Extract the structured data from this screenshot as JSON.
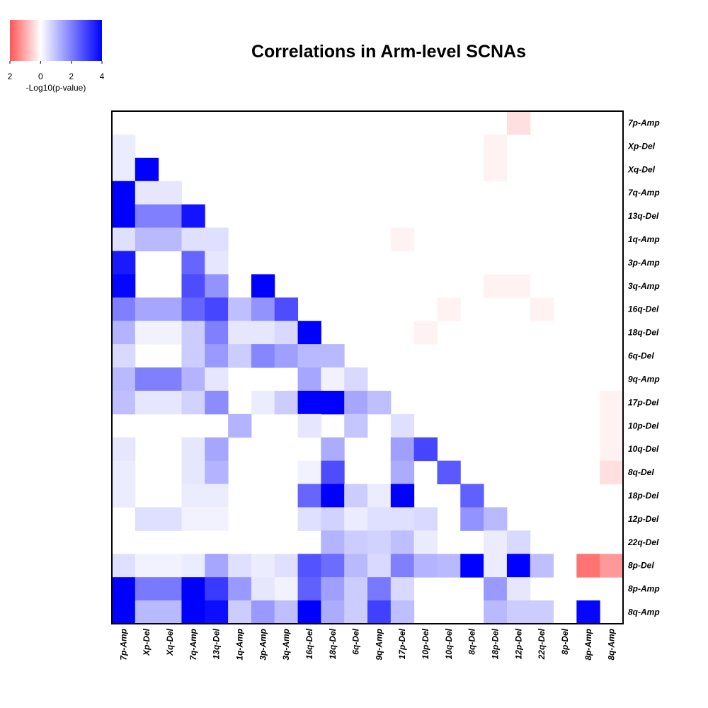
{
  "chart_data": {
    "type": "heatmap",
    "title": "Correlations in Arm-level SCNAs",
    "legend": {
      "label": "-Log10(p-value)",
      "ticks": [
        "2",
        "0",
        "2",
        "4"
      ],
      "range": [
        -2,
        4
      ],
      "negative_color": "#ff0000",
      "neutral_color": "#ffffff",
      "positive_color": "#0000ff",
      "placement": "top-left"
    },
    "rows": [
      "7p-Amp",
      "Xp-Del",
      "Xq-Del",
      "7q-Amp",
      "13q-Del",
      "1q-Amp",
      "3p-Amp",
      "3q-Amp",
      "16q-Del",
      "18q-Del",
      "6q-Del",
      "9q-Amp",
      "17p-Del",
      "10p-Del",
      "10q-Del",
      "8q-Del",
      "18p-Del",
      "12p-Del",
      "22q-Del",
      "8p-Del",
      "8p-Amp",
      "8q-Amp"
    ],
    "columns": [
      "7p-Amp",
      "Xp-Del",
      "Xq-Del",
      "7q-Amp",
      "13q-Del",
      "1q-Amp",
      "3p-Amp",
      "3q-Amp",
      "16q-Del",
      "18q-Del",
      "6q-Del",
      "9q-Amp",
      "17p-Del",
      "10p-Del",
      "10q-Del",
      "8q-Del",
      "18p-Del",
      "12p-Del",
      "22q-Del",
      "8p-Del",
      "8p-Amp",
      "8q-Amp"
    ],
    "values": [
      [
        0,
        0,
        0,
        0,
        0,
        0,
        0,
        0,
        0,
        0,
        0,
        0,
        0,
        0,
        0,
        0,
        0,
        -0.25,
        0,
        0,
        0,
        0
      ],
      [
        0.3,
        0,
        0,
        0,
        0,
        0,
        0,
        0,
        0,
        0,
        0,
        0,
        0,
        0,
        0,
        0,
        -0.1,
        0,
        0,
        0,
        0,
        0
      ],
      [
        0.3,
        4,
        0,
        0,
        0,
        0,
        0,
        0,
        0,
        0,
        0,
        0,
        0,
        0,
        0,
        0,
        -0.1,
        0,
        0,
        0,
        0,
        0
      ],
      [
        4,
        0.4,
        0.4,
        0,
        0,
        0,
        0,
        0,
        0,
        0,
        0,
        0,
        0,
        0,
        0,
        0,
        0,
        0,
        0,
        0,
        0,
        0
      ],
      [
        4,
        2,
        2,
        3.7,
        0,
        0,
        0,
        0,
        0,
        0,
        0,
        0,
        0,
        0,
        0,
        0,
        0,
        0,
        0,
        0,
        0,
        0
      ],
      [
        0.5,
        1.1,
        1.1,
        0.5,
        0.5,
        0,
        0,
        0,
        0,
        0,
        0,
        0,
        -0.1,
        0,
        0,
        0,
        0,
        0,
        0,
        0,
        0,
        0
      ],
      [
        3.6,
        0,
        0,
        2.4,
        0.4,
        0,
        0,
        0,
        0,
        0,
        0,
        0,
        0,
        0,
        0,
        0,
        0,
        0,
        0,
        0,
        0,
        0
      ],
      [
        3.9,
        0,
        0,
        2.8,
        1.7,
        0,
        4,
        0,
        0,
        0,
        0,
        0,
        0,
        0,
        0,
        0,
        -0.1,
        -0.1,
        0,
        0,
        0,
        0
      ],
      [
        2,
        1.4,
        1.4,
        2.4,
        2.9,
        1,
        1.7,
        2.8,
        0,
        0,
        0,
        0,
        0,
        0,
        -0.1,
        0,
        0,
        0,
        -0.1,
        0,
        0,
        0
      ],
      [
        1.2,
        0.2,
        0.2,
        0.8,
        2,
        0.4,
        0.4,
        0.6,
        4,
        0,
        0,
        0,
        0,
        -0.1,
        0,
        0,
        0,
        0,
        0,
        0,
        0,
        0
      ],
      [
        0.6,
        0,
        0,
        0.8,
        1.6,
        0.8,
        1.9,
        1.5,
        1.1,
        1.1,
        0,
        0,
        0,
        0,
        0,
        0,
        0,
        0,
        0,
        0,
        0,
        0
      ],
      [
        1.1,
        2,
        2,
        1.2,
        0.4,
        0,
        0,
        0,
        1.4,
        0.2,
        0.6,
        0,
        0,
        0,
        0,
        0,
        0,
        0,
        0,
        0,
        0,
        0
      ],
      [
        1,
        0.4,
        0.4,
        0.7,
        1.8,
        0,
        0.3,
        0.8,
        4,
        4,
        1.4,
        1,
        0,
        0,
        0,
        0,
        0,
        0,
        0,
        0,
        0,
        -0.1
      ],
      [
        0,
        0,
        0,
        0,
        0,
        1.2,
        0,
        0,
        0.4,
        0,
        0.9,
        0,
        0.5,
        0,
        0,
        0,
        0,
        0,
        0,
        0,
        0,
        -0.1
      ],
      [
        0.4,
        0,
        0,
        0.4,
        1.4,
        0,
        0,
        0,
        0,
        1.3,
        0,
        0,
        1.5,
        2.9,
        0,
        0,
        0,
        0,
        0,
        0,
        0,
        -0.1
      ],
      [
        0.3,
        0,
        0,
        0.4,
        1.2,
        0,
        0,
        0,
        0.2,
        2.8,
        0,
        0,
        1.3,
        0,
        2.6,
        0,
        0,
        0,
        0,
        0,
        0,
        -0.25
      ],
      [
        0.3,
        0,
        0,
        0.3,
        0.3,
        0,
        0,
        0,
        2.4,
        4,
        0.8,
        0.3,
        4,
        0,
        0,
        2.5,
        0,
        0,
        0,
        0,
        0,
        0
      ],
      [
        0,
        0.5,
        0.5,
        0.2,
        0.2,
        0,
        0,
        0,
        0.5,
        0.7,
        0.3,
        0.5,
        0.5,
        0.6,
        0,
        1.7,
        1.1,
        0,
        0,
        0,
        0,
        0
      ],
      [
        0,
        0,
        0,
        0,
        0,
        0,
        0,
        0,
        0,
        1.2,
        0.8,
        0.7,
        1,
        0.3,
        0,
        0,
        0.3,
        0.6,
        0,
        0,
        0,
        0
      ],
      [
        0.5,
        0.2,
        0.2,
        0.3,
        1.4,
        0.5,
        0.3,
        0.5,
        2.7,
        2.3,
        1.1,
        0.6,
        2,
        1.2,
        1.1,
        4,
        0.3,
        4,
        1,
        0,
        -1.1,
        -0.8
      ],
      [
        4,
        2.1,
        2.1,
        4,
        3.1,
        1.6,
        0.4,
        0.2,
        2.5,
        1.5,
        0.8,
        2.1,
        0.6,
        0,
        0,
        0,
        1.6,
        0.4,
        0,
        0,
        0,
        0
      ],
      [
        4,
        1.1,
        1.1,
        4,
        3.8,
        0.8,
        1.6,
        1,
        4,
        1.3,
        0.8,
        3,
        1,
        0,
        0,
        0,
        1.1,
        0.8,
        0.8,
        0,
        3.9,
        0
      ]
    ]
  }
}
